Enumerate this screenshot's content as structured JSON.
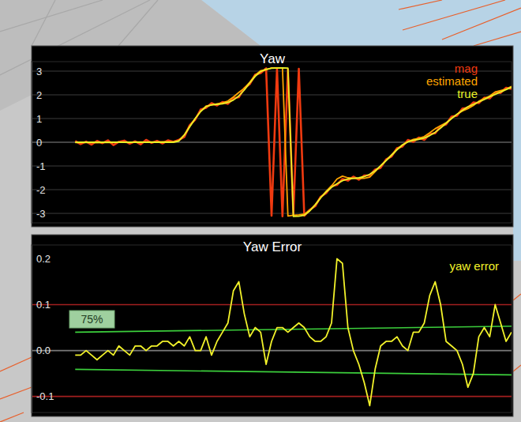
{
  "chart_data": [
    {
      "type": "line",
      "title": "Yaw",
      "x": [
        0,
        0.25,
        0.5,
        0.75,
        1,
        1.25,
        1.5,
        1.75,
        2,
        2.25,
        2.5,
        2.75,
        3,
        3.25,
        3.5,
        3.75,
        4,
        4.25,
        4.5,
        4.75,
        5,
        5.25,
        5.5,
        5.75,
        6,
        6.25,
        6.5,
        6.75,
        7,
        7.25,
        7.5,
        7.75,
        8,
        8.25,
        8.5,
        8.75,
        9,
        9.25,
        9.5,
        9.75,
        10,
        10.25,
        10.5,
        10.75,
        11,
        11.25,
        11.5,
        11.75,
        12,
        12.25,
        12.5,
        12.75,
        13,
        13.25,
        13.5,
        13.75,
        14,
        14.25,
        14.5,
        14.75,
        15,
        15.25,
        15.5,
        15.75,
        16,
        16.25,
        16.5,
        16.75,
        17,
        17.25,
        17.5,
        17.75,
        18,
        18.25,
        18.5,
        18.75,
        19,
        19.25,
        19.5,
        19.75,
        20
      ],
      "series": [
        {
          "name": "mag",
          "color": "#f03a10",
          "values": [
            0.05,
            -0.08,
            0.03,
            -0.1,
            0.06,
            -0.04,
            0.08,
            -0.12,
            0.02,
            0.07,
            -0.06,
            0.04,
            -0.09,
            0.1,
            -0.03,
            0.06,
            -0.05,
            0.08,
            0.02,
            0.1,
            0.22,
            0.72,
            0.95,
            1.38,
            1.45,
            1.65,
            1.55,
            1.7,
            1.62,
            1.85,
            1.9,
            2.28,
            2.45,
            2.85,
            2.92,
            3.12,
            -3.1,
            3.1,
            -3.12,
            3.08,
            -3.05,
            3.1,
            -3.1,
            -2.85,
            -2.7,
            -2.3,
            -2.15,
            -1.85,
            -1.8,
            -1.55,
            -1.62,
            -1.45,
            -1.58,
            -1.4,
            -1.4,
            -1.15,
            -1.08,
            -0.72,
            -0.6,
            -0.25,
            -0.18,
            0.1,
            0.02,
            0.2,
            0.1,
            0.35,
            0.38,
            0.68,
            0.75,
            1.08,
            1.12,
            1.42,
            1.45,
            1.68,
            1.65,
            1.88,
            1.85,
            2.1,
            2.08,
            2.3,
            2.25
          ]
        },
        {
          "name": "estimated",
          "color": "#ffa500",
          "values": [
            -0.01,
            -0.01,
            0,
            -0.01,
            -0.02,
            -0.01,
            0,
            -0.01,
            0.01,
            0,
            -0.01,
            0.01,
            0.01,
            0,
            0.01,
            0.01,
            0.02,
            0.02,
            0.01,
            0.07,
            0.31,
            0.68,
            1,
            1.3,
            1.53,
            1.57,
            1.62,
            1.66,
            1.74,
            1.91,
            2.1,
            2.28,
            2.53,
            2.83,
            3.02,
            3.05,
            3.14,
            3.14,
            3.14,
            -3.11,
            -3.08,
            -3.06,
            -3.03,
            -2.87,
            -2.63,
            -2.33,
            -2.07,
            -1.84,
            -1.55,
            -1.43,
            -1.5,
            -1.52,
            -1.53,
            -1.52,
            -1.47,
            -1.24,
            -0.99,
            -0.76,
            -0.53,
            -0.29,
            -0.11,
            0.02,
            0.12,
            0.16,
            0.24,
            0.4,
            0.57,
            0.7,
            0.82,
            1.01,
            1.18,
            1.32,
            1.42,
            1.55,
            1.73,
            1.85,
            1.95,
            2.12,
            2.18,
            2.24,
            2.36
          ]
        },
        {
          "name": "true",
          "color": "#e8f028",
          "values": [
            0,
            0,
            0,
            0,
            0,
            0,
            0,
            0,
            0,
            0,
            0,
            0,
            0,
            0,
            0,
            0,
            0,
            0,
            0,
            0.05,
            0.3,
            0.65,
            1,
            1.3,
            1.5,
            1.58,
            1.6,
            1.62,
            1.68,
            1.78,
            1.95,
            2.2,
            2.5,
            2.78,
            2.98,
            3.08,
            3.12,
            3.13,
            3.14,
            3.13,
            -3.13,
            -3.12,
            -3.08,
            -2.9,
            -2.65,
            -2.35,
            -2.1,
            -1.9,
            -1.75,
            -1.62,
            -1.55,
            -1.52,
            -1.5,
            -1.45,
            -1.35,
            -1.2,
            -1,
            -0.78,
            -0.55,
            -0.32,
            -0.12,
            0.02,
            0.08,
            0.12,
            0.18,
            0.28,
            0.42,
            0.6,
            0.8,
            1,
            1.18,
            1.35,
            1.5,
            1.6,
            1.7,
            1.8,
            1.92,
            2.02,
            2.12,
            2.22,
            2.32
          ]
        }
      ],
      "xlim": [
        -2,
        20
      ],
      "ylim": [
        -3.4,
        3.4
      ],
      "yticks": [
        -3,
        -2,
        -1,
        0,
        1,
        2,
        3
      ],
      "grid": true,
      "tick_labels": "y",
      "legend": "top-right"
    },
    {
      "type": "line",
      "title": "Yaw Error",
      "x": [
        0,
        0.25,
        0.5,
        0.75,
        1,
        1.25,
        1.5,
        1.75,
        2,
        2.25,
        2.5,
        2.75,
        3,
        3.25,
        3.5,
        3.75,
        4,
        4.25,
        4.5,
        4.75,
        5,
        5.25,
        5.5,
        5.75,
        6,
        6.25,
        6.5,
        6.75,
        7,
        7.25,
        7.5,
        7.75,
        8,
        8.25,
        8.5,
        8.75,
        9,
        9.25,
        9.5,
        9.75,
        10,
        10.25,
        10.5,
        10.75,
        11,
        11.25,
        11.5,
        11.75,
        12,
        12.25,
        12.5,
        12.75,
        13,
        13.25,
        13.5,
        13.75,
        14,
        14.25,
        14.5,
        14.75,
        15,
        15.25,
        15.5,
        15.75,
        16,
        16.25,
        16.5,
        16.75,
        17,
        17.25,
        17.5,
        17.75,
        18,
        18.25,
        18.5,
        18.75,
        19,
        19.25,
        19.5,
        19.75,
        20
      ],
      "series": [
        {
          "name": "yaw error",
          "color": "#f2f22a",
          "values": [
            -0.01,
            -0.01,
            0,
            -0.01,
            -0.02,
            -0.01,
            0,
            -0.01,
            0.01,
            0,
            -0.01,
            0.01,
            0.01,
            0,
            0.01,
            0.01,
            0.02,
            0.02,
            0.01,
            0.02,
            0.01,
            0.03,
            0,
            0,
            0.03,
            -0.01,
            0.02,
            0.04,
            0.06,
            0.13,
            0.15,
            0.08,
            0.03,
            0.05,
            0.04,
            -0.03,
            0.02,
            0.05,
            0.05,
            0.04,
            0.05,
            0.06,
            0.05,
            0.03,
            0.02,
            0.02,
            0.03,
            0.06,
            0.2,
            0.19,
            0.05,
            0,
            -0.03,
            -0.07,
            -0.12,
            -0.04,
            0.01,
            0.02,
            0.02,
            0.03,
            0.01,
            0,
            0.04,
            0.04,
            0.06,
            0.12,
            0.15,
            0.1,
            0.02,
            0.01,
            0,
            -0.03,
            -0.08,
            -0.05,
            0.03,
            0.05,
            0.03,
            0.1,
            0.06,
            0.02,
            0.04
          ]
        }
      ],
      "reference_lines": [
        {
          "color": "#7a7a7a",
          "x": [
            -2,
            20
          ],
          "values": [
            0,
            0
          ]
        },
        {
          "color": "#a31f1f",
          "x": [
            -2,
            20
          ],
          "values": [
            0.1,
            0.1
          ]
        },
        {
          "color": "#a31f1f",
          "x": [
            -2,
            20
          ],
          "values": [
            -0.1,
            -0.1
          ]
        },
        {
          "color": "#3ccf3c",
          "x": [
            0,
            20
          ],
          "values": [
            0.04,
            0.053
          ]
        },
        {
          "color": "#3ccf3c",
          "x": [
            0,
            20
          ],
          "values": [
            -0.041,
            -0.053
          ]
        }
      ],
      "annotations": [
        {
          "text": "75%"
        }
      ],
      "xlim": [
        -2,
        20
      ],
      "ylim": [
        -0.135,
        0.23
      ],
      "yticks": [
        -0.1,
        {
          "value": 0,
          "label": "0.0"
        },
        0.1,
        0.2
      ],
      "grid": false,
      "tick_labels": "y",
      "legend": "top-right"
    }
  ]
}
